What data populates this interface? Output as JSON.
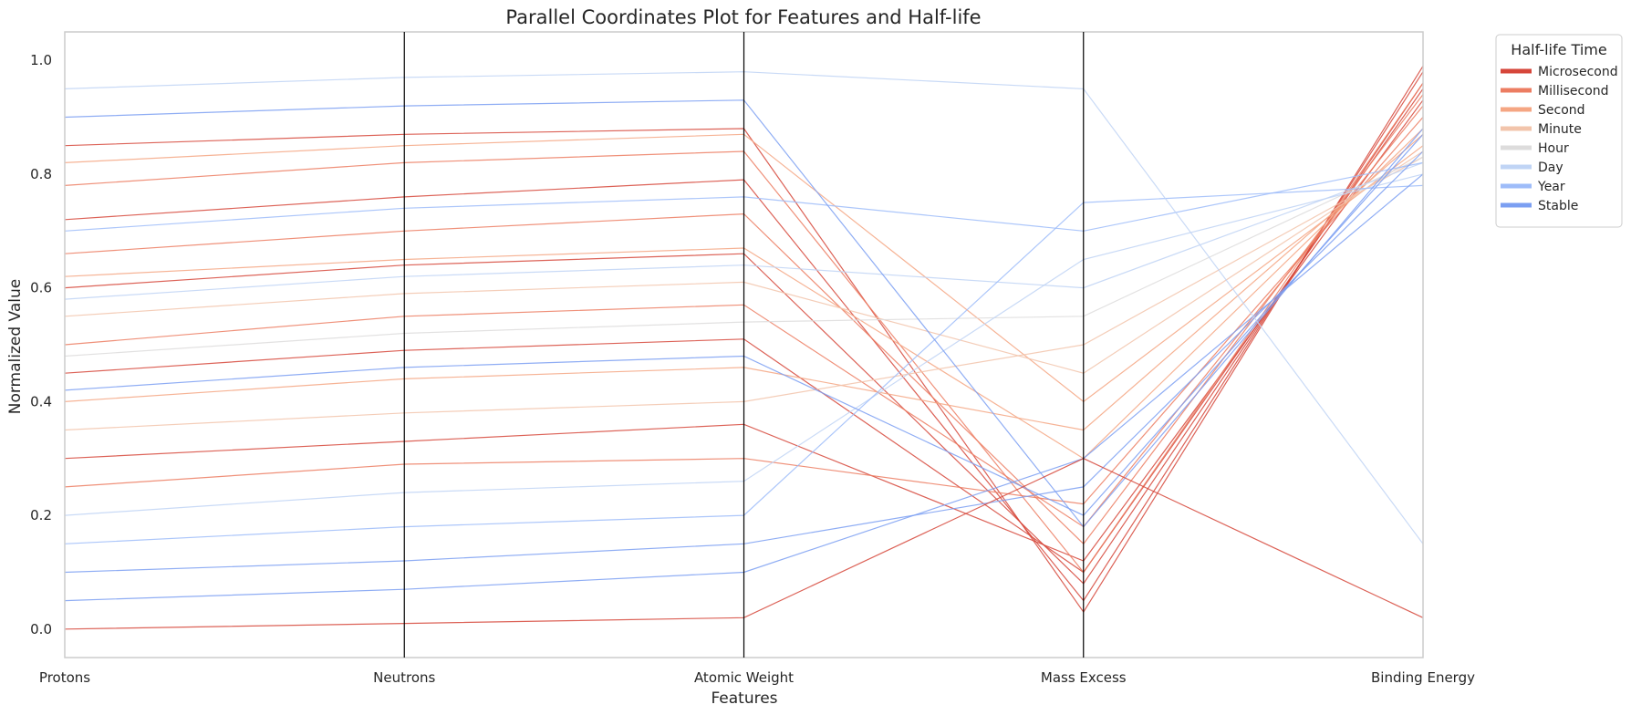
{
  "chart_data": {
    "type": "parallel-coordinates",
    "title": "Parallel Coordinates Plot for Features and Half-life",
    "xlabel": "Features",
    "ylabel": "Normalized Value",
    "ylim": [
      -0.05,
      1.05
    ],
    "yticks": [
      0.0,
      0.2,
      0.4,
      0.6,
      0.8,
      1.0
    ],
    "ytick_labels": [
      "0.0",
      "0.2",
      "0.4",
      "0.6",
      "0.8",
      "1.0"
    ],
    "features": [
      "Protons",
      "Neutrons",
      "Atomic Weight",
      "Mass Excess",
      "Binding Energy"
    ],
    "grid": false,
    "legend": {
      "title": "Half-life Time",
      "placement": "outside-upper-right",
      "entries": [
        {
          "label": "Microsecond",
          "color": "#d6463a"
        },
        {
          "label": "Millisecond",
          "color": "#ec7d62"
        },
        {
          "label": "Second",
          "color": "#f5a683"
        },
        {
          "label": "Minute",
          "color": "#f2c4ab"
        },
        {
          "label": "Hour",
          "color": "#dddcdc"
        },
        {
          "label": "Day",
          "color": "#c0d4f5"
        },
        {
          "label": "Year",
          "color": "#9ebcf9"
        },
        {
          "label": "Stable",
          "color": "#7b9ff2"
        }
      ]
    },
    "series": [
      {
        "category": "Microsecond",
        "values": [
          0.72,
          0.76,
          0.79,
          0.05,
          0.98
        ]
      },
      {
        "category": "Microsecond",
        "values": [
          0.6,
          0.64,
          0.66,
          0.08,
          0.96
        ]
      },
      {
        "category": "Microsecond",
        "values": [
          0.45,
          0.49,
          0.51,
          0.1,
          0.95
        ]
      },
      {
        "category": "Microsecond",
        "values": [
          0.85,
          0.87,
          0.88,
          0.03,
          0.99
        ]
      },
      {
        "category": "Microsecond",
        "values": [
          0.3,
          0.33,
          0.36,
          0.12,
          0.93
        ]
      },
      {
        "category": "Millisecond",
        "values": [
          0.66,
          0.7,
          0.73,
          0.15,
          0.94
        ]
      },
      {
        "category": "Millisecond",
        "values": [
          0.5,
          0.55,
          0.57,
          0.18,
          0.92
        ]
      },
      {
        "category": "Millisecond",
        "values": [
          0.78,
          0.82,
          0.84,
          0.1,
          0.96
        ]
      },
      {
        "category": "Millisecond",
        "values": [
          0.25,
          0.29,
          0.3,
          0.22,
          0.9
        ]
      },
      {
        "category": "Second",
        "values": [
          0.62,
          0.65,
          0.67,
          0.3,
          0.88
        ]
      },
      {
        "category": "Second",
        "values": [
          0.4,
          0.44,
          0.46,
          0.35,
          0.87
        ]
      },
      {
        "category": "Second",
        "values": [
          0.82,
          0.85,
          0.87,
          0.4,
          0.85
        ]
      },
      {
        "category": "Minute",
        "values": [
          0.55,
          0.59,
          0.61,
          0.45,
          0.84
        ]
      },
      {
        "category": "Minute",
        "values": [
          0.35,
          0.38,
          0.4,
          0.5,
          0.83
        ]
      },
      {
        "category": "Hour",
        "values": [
          0.48,
          0.52,
          0.54,
          0.55,
          0.83
        ]
      },
      {
        "category": "Day",
        "values": [
          0.58,
          0.62,
          0.64,
          0.6,
          0.82
        ]
      },
      {
        "category": "Day",
        "values": [
          0.2,
          0.24,
          0.26,
          0.65,
          0.8
        ]
      },
      {
        "category": "Year",
        "values": [
          0.7,
          0.74,
          0.76,
          0.7,
          0.82
        ]
      },
      {
        "category": "Year",
        "values": [
          0.15,
          0.18,
          0.2,
          0.75,
          0.78
        ]
      },
      {
        "category": "Stable",
        "values": [
          0.42,
          0.46,
          0.48,
          0.2,
          0.87
        ]
      },
      {
        "category": "Stable",
        "values": [
          0.1,
          0.12,
          0.15,
          0.25,
          0.84
        ]
      },
      {
        "category": "Stable",
        "values": [
          0.9,
          0.92,
          0.93,
          0.18,
          0.88
        ]
      },
      {
        "category": "Stable",
        "values": [
          0.05,
          0.07,
          0.1,
          0.3,
          0.8
        ]
      },
      {
        "category": "Day",
        "values": [
          0.95,
          0.97,
          0.98,
          0.95,
          0.15
        ]
      },
      {
        "category": "Microsecond",
        "values": [
          0.0,
          0.01,
          0.02,
          0.3,
          0.02
        ]
      }
    ]
  }
}
